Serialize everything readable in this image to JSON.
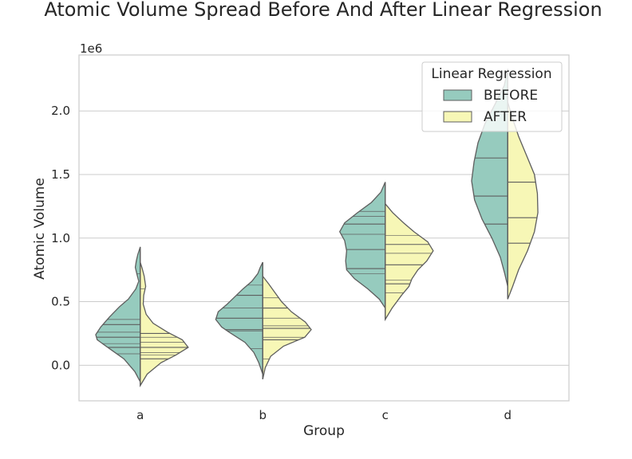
{
  "chart_data": {
    "type": "violin",
    "title": "Atomic Volume Spread Before And After Linear Regression",
    "xlabel": "Group",
    "ylabel": "Atomic Volume",
    "offset_label": "1e6",
    "categories": [
      "a",
      "b",
      "c",
      "d"
    ],
    "ylim": [
      -0.28,
      2.44
    ],
    "yticks": [
      0.0,
      0.5,
      1.0,
      1.5,
      2.0
    ],
    "ytick_labels": [
      "0.0",
      "0.5",
      "1.0",
      "1.5",
      "2.0"
    ],
    "grid": true,
    "split": true,
    "inner": "quartile-and-stick",
    "legend": {
      "title": "Linear Regression",
      "placement": "top-right"
    },
    "series": [
      {
        "name": "BEFORE",
        "color": "#96cbbe",
        "side": "left",
        "groups": [
          {
            "category": "a",
            "min": -0.13,
            "max": 0.93,
            "profile": [
              [
                -0.13,
                0.0
              ],
              [
                -0.05,
                0.11
              ],
              [
                0.05,
                0.33
              ],
              [
                0.13,
                0.62
              ],
              [
                0.2,
                0.87
              ],
              [
                0.24,
                0.9
              ],
              [
                0.3,
                0.8
              ],
              [
                0.38,
                0.62
              ],
              [
                0.46,
                0.42
              ],
              [
                0.52,
                0.24
              ],
              [
                0.6,
                0.09
              ],
              [
                0.66,
                0.03
              ],
              [
                0.72,
                0.07
              ],
              [
                0.77,
                0.1
              ],
              [
                0.82,
                0.08
              ],
              [
                0.87,
                0.05
              ],
              [
                0.93,
                0.0
              ]
            ],
            "quartiles": [
              0.14,
              0.22,
              0.32
            ],
            "sticks": [
              0.09,
              0.17,
              0.26,
              0.36,
              0.72
            ]
          },
          {
            "category": "b",
            "min": -0.07,
            "max": 0.81,
            "profile": [
              [
                -0.07,
                0.0
              ],
              [
                0.02,
                0.08
              ],
              [
                0.1,
                0.18
              ],
              [
                0.18,
                0.36
              ],
              [
                0.26,
                0.68
              ],
              [
                0.3,
                0.83
              ],
              [
                0.36,
                0.95
              ],
              [
                0.42,
                0.9
              ],
              [
                0.48,
                0.72
              ],
              [
                0.54,
                0.56
              ],
              [
                0.6,
                0.4
              ],
              [
                0.66,
                0.22
              ],
              [
                0.72,
                0.1
              ],
              [
                0.77,
                0.05
              ],
              [
                0.81,
                0.0
              ]
            ],
            "quartiles": [
              0.28,
              0.37,
              0.55
            ],
            "sticks": [
              0.13,
              0.27,
              0.45,
              0.63
            ]
          },
          {
            "category": "c",
            "min": 0.45,
            "max": 1.44,
            "profile": [
              [
                0.45,
                0.0
              ],
              [
                0.52,
                0.12
              ],
              [
                0.6,
                0.35
              ],
              [
                0.68,
                0.62
              ],
              [
                0.75,
                0.78
              ],
              [
                0.82,
                0.8
              ],
              [
                0.9,
                0.78
              ],
              [
                0.98,
                0.82
              ],
              [
                1.05,
                0.92
              ],
              [
                1.12,
                0.82
              ],
              [
                1.2,
                0.56
              ],
              [
                1.28,
                0.28
              ],
              [
                1.36,
                0.09
              ],
              [
                1.44,
                0.0
              ]
            ],
            "quartiles": [
              0.76,
              0.91,
              1.11
            ],
            "sticks": [
              0.72,
              1.03,
              1.17,
              1.21
            ]
          },
          {
            "category": "d",
            "min": 0.62,
            "max": 2.33,
            "profile": [
              [
                0.62,
                0.0
              ],
              [
                0.72,
                0.06
              ],
              [
                0.85,
                0.15
              ],
              [
                1.0,
                0.32
              ],
              [
                1.15,
                0.52
              ],
              [
                1.3,
                0.67
              ],
              [
                1.45,
                0.73
              ],
              [
                1.6,
                0.68
              ],
              [
                1.75,
                0.6
              ],
              [
                1.9,
                0.46
              ],
              [
                2.05,
                0.26
              ],
              [
                2.2,
                0.07
              ],
              [
                2.33,
                0.0
              ]
            ],
            "quartiles": [
              1.11,
              1.33,
              1.63
            ],
            "sticks": []
          }
        ]
      },
      {
        "name": "AFTER",
        "color": "#f7f7b6",
        "side": "right",
        "groups": [
          {
            "category": "a",
            "min": -0.16,
            "max": 0.81,
            "profile": [
              [
                -0.16,
                0.0
              ],
              [
                -0.07,
                0.14
              ],
              [
                0.02,
                0.42
              ],
              [
                0.08,
                0.72
              ],
              [
                0.14,
                0.97
              ],
              [
                0.2,
                0.85
              ],
              [
                0.26,
                0.55
              ],
              [
                0.33,
                0.26
              ],
              [
                0.4,
                0.12
              ],
              [
                0.48,
                0.06
              ],
              [
                0.55,
                0.07
              ],
              [
                0.62,
                0.11
              ],
              [
                0.7,
                0.08
              ],
              [
                0.76,
                0.04
              ],
              [
                0.81,
                0.0
              ]
            ],
            "quartiles": [
              0.05,
              0.14,
              0.25
            ],
            "sticks": [
              0.08,
              0.1,
              0.18,
              0.22,
              0.6
            ]
          },
          {
            "category": "b",
            "min": -0.11,
            "max": 0.7,
            "profile": [
              [
                -0.11,
                0.0
              ],
              [
                -0.02,
                0.05
              ],
              [
                0.07,
                0.16
              ],
              [
                0.15,
                0.42
              ],
              [
                0.22,
                0.85
              ],
              [
                0.28,
                0.98
              ],
              [
                0.34,
                0.86
              ],
              [
                0.42,
                0.58
              ],
              [
                0.5,
                0.38
              ],
              [
                0.58,
                0.23
              ],
              [
                0.64,
                0.12
              ],
              [
                0.7,
                0.0
              ]
            ],
            "quartiles": [
              0.2,
              0.29,
              0.45
            ],
            "sticks": [
              0.05,
              0.22,
              0.31,
              0.37,
              0.53
            ]
          },
          {
            "category": "c",
            "min": 0.36,
            "max": 1.27,
            "profile": [
              [
                0.36,
                0.0
              ],
              [
                0.45,
                0.14
              ],
              [
                0.55,
                0.33
              ],
              [
                0.62,
                0.48
              ],
              [
                0.68,
                0.54
              ],
              [
                0.75,
                0.66
              ],
              [
                0.82,
                0.84
              ],
              [
                0.9,
                0.97
              ],
              [
                0.97,
                0.86
              ],
              [
                1.05,
                0.58
              ],
              [
                1.12,
                0.37
              ],
              [
                1.2,
                0.15
              ],
              [
                1.27,
                0.0
              ]
            ],
            "quartiles": [
              0.64,
              0.79,
              0.95
            ],
            "sticks": [
              0.57,
              0.67,
              0.88,
              1.02
            ]
          },
          {
            "category": "d",
            "min": 0.52,
            "max": 2.07,
            "profile": [
              [
                0.52,
                0.0
              ],
              [
                0.62,
                0.1
              ],
              [
                0.75,
                0.22
              ],
              [
                0.9,
                0.4
              ],
              [
                1.05,
                0.54
              ],
              [
                1.2,
                0.61
              ],
              [
                1.35,
                0.6
              ],
              [
                1.5,
                0.54
              ],
              [
                1.65,
                0.38
              ],
              [
                1.8,
                0.22
              ],
              [
                1.95,
                0.09
              ],
              [
                2.07,
                0.0
              ]
            ],
            "quartiles": [
              0.96,
              1.16,
              1.44
            ],
            "sticks": []
          }
        ]
      }
    ]
  }
}
